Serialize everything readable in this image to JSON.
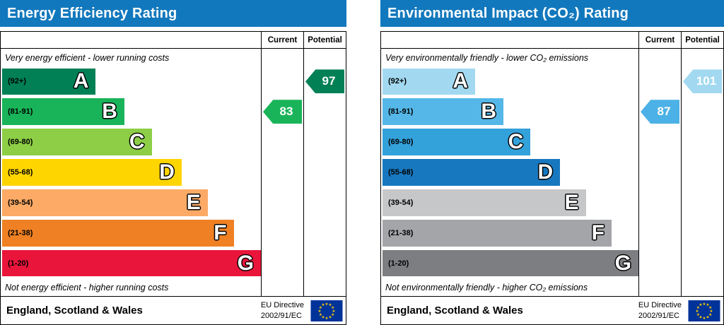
{
  "chart_data": [
    {
      "type": "bar",
      "chart_kind": "epc-rating-scale",
      "title": "Energy Efficiency Rating",
      "columns": [
        "Current",
        "Potential"
      ],
      "top_caption": "Very energy efficient - lower running costs",
      "bottom_caption": "Not energy efficient - higher running costs",
      "header_color": "#1278bd",
      "bands": [
        {
          "letter": "A",
          "range": "(92+)",
          "color": "#008054",
          "width_pct": 36
        },
        {
          "letter": "B",
          "range": "(81-91)",
          "color": "#19b459",
          "width_pct": 47
        },
        {
          "letter": "C",
          "range": "(69-80)",
          "color": "#8dce46",
          "width_pct": 57.5
        },
        {
          "letter": "D",
          "range": "(55-68)",
          "color": "#ffd500",
          "width_pct": 69
        },
        {
          "letter": "E",
          "range": "(39-54)",
          "color": "#fcaa65",
          "width_pct": 79
        },
        {
          "letter": "F",
          "range": "(21-38)",
          "color": "#ef8023",
          "width_pct": 89
        },
        {
          "letter": "G",
          "range": "(1-20)",
          "color": "#e9153b",
          "width_pct": 99.5
        }
      ],
      "current": {
        "value": 83,
        "band": "B",
        "band_index": 1,
        "color": "#19b459"
      },
      "potential": {
        "value": 97,
        "band": "A",
        "band_index": 0,
        "color": "#008054"
      },
      "footer": {
        "region": "England, Scotland & Wales",
        "directive_line1": "EU Directive",
        "directive_line2": "2002/91/EC"
      }
    },
    {
      "type": "bar",
      "chart_kind": "epc-rating-scale",
      "title": "Environmental Impact (CO₂) Rating",
      "columns": [
        "Current",
        "Potential"
      ],
      "top_caption": "Very environmentally friendly - lower CO₂ emissions",
      "bottom_caption": "Not environmentally friendly - higher CO₂ emissions",
      "header_color": "#1278bd",
      "bands": [
        {
          "letter": "A",
          "range": "(92+)",
          "color": "#a2d9f1",
          "width_pct": 36
        },
        {
          "letter": "B",
          "range": "(81-91)",
          "color": "#55b7e8",
          "width_pct": 47
        },
        {
          "letter": "C",
          "range": "(69-80)",
          "color": "#33a1da",
          "width_pct": 57.5
        },
        {
          "letter": "D",
          "range": "(55-68)",
          "color": "#1878bf",
          "width_pct": 69
        },
        {
          "letter": "E",
          "range": "(39-54)",
          "color": "#c6c7c9",
          "width_pct": 79
        },
        {
          "letter": "F",
          "range": "(21-38)",
          "color": "#a4a5a9",
          "width_pct": 89
        },
        {
          "letter": "G",
          "range": "(1-20)",
          "color": "#7c7e82",
          "width_pct": 99.5
        }
      ],
      "current": {
        "value": 87,
        "band": "B",
        "band_index": 1,
        "color": "#4cb1e6"
      },
      "potential": {
        "value": 101,
        "band": "A",
        "band_index": 0,
        "color": "#a2d9f1"
      },
      "footer": {
        "region": "England, Scotland & Wales",
        "directive_line1": "EU Directive",
        "directive_line2": "2002/91/EC"
      }
    }
  ]
}
